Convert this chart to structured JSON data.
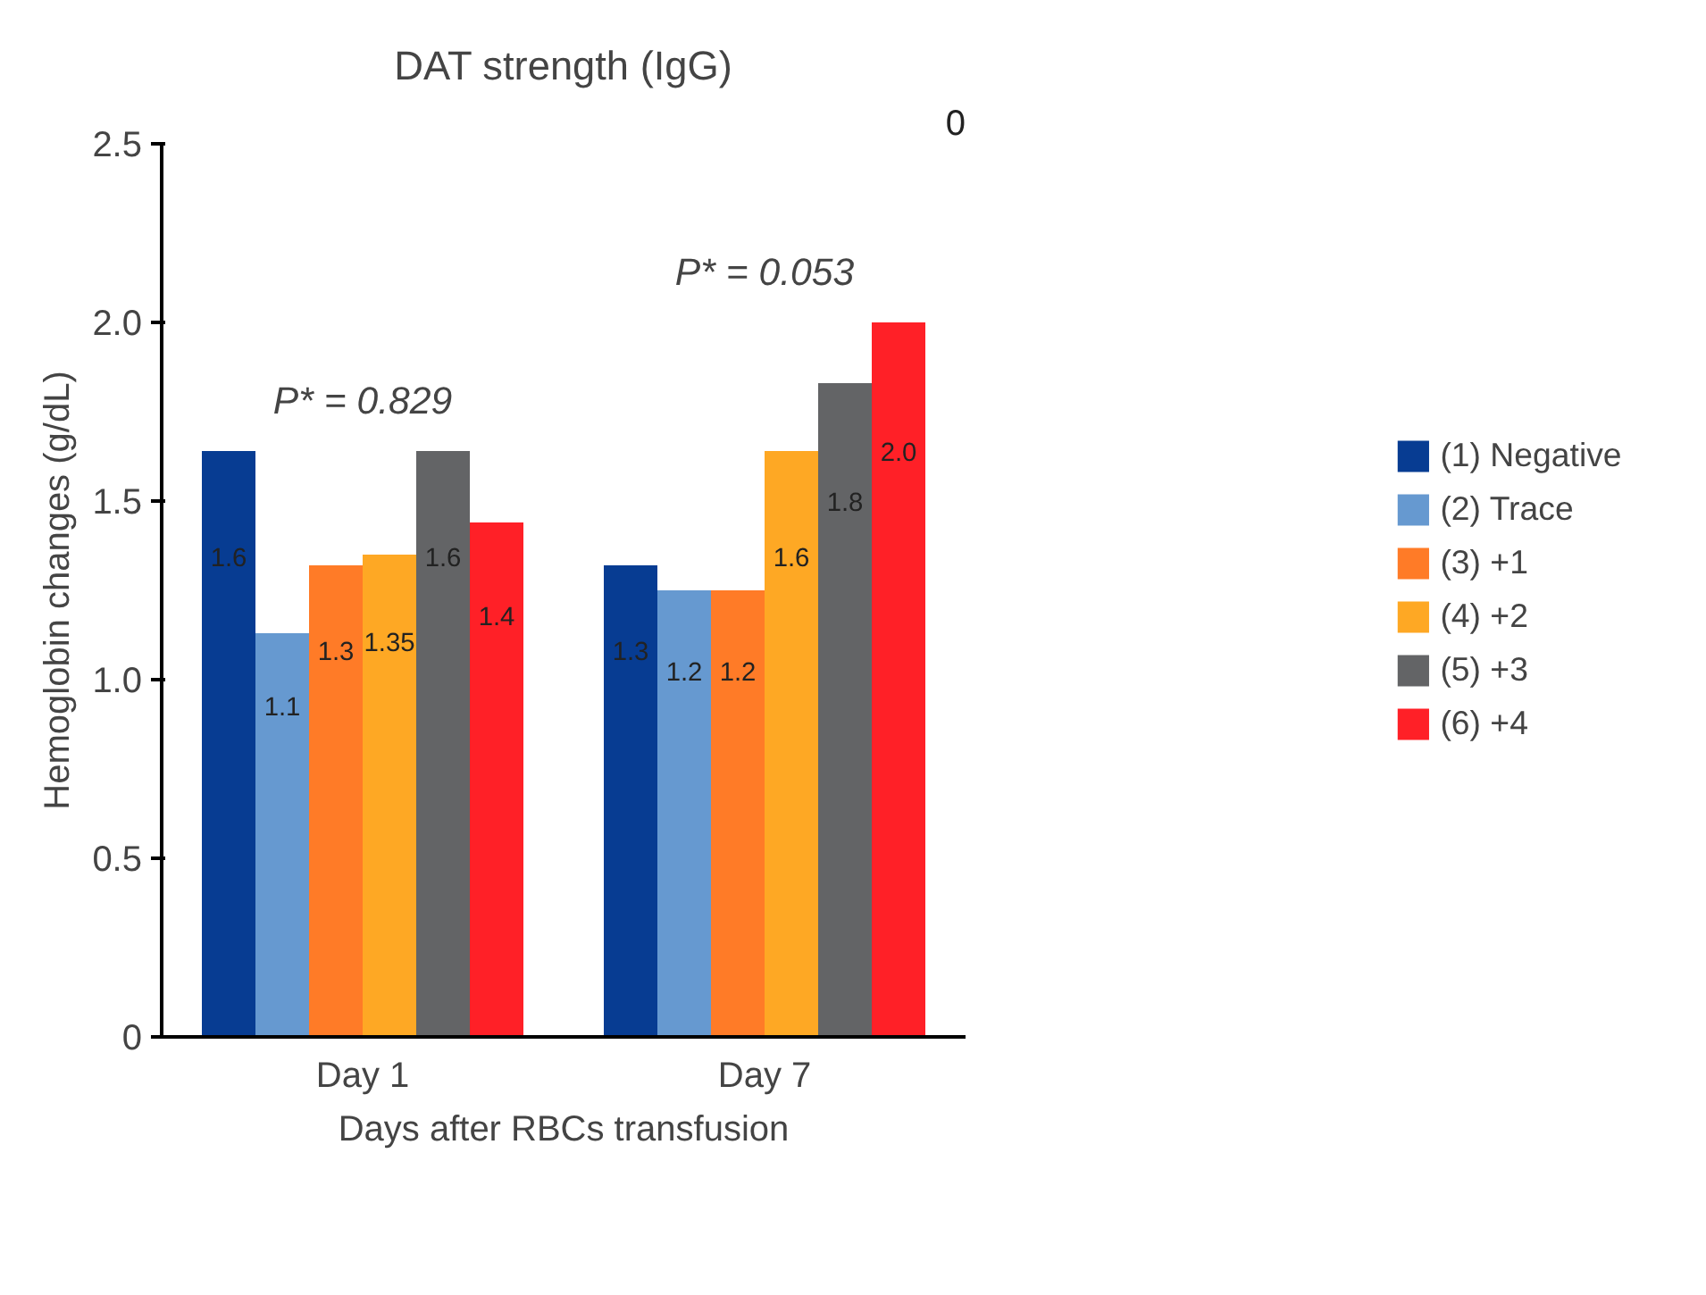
{
  "chart_data": {
    "type": "bar",
    "title": "DAT strength (IgG)",
    "xlabel": "Days after RBCs transfusion",
    "ylabel": "Hemoglobin changes (g/dL)",
    "categories": [
      "Day 1",
      "Day 7"
    ],
    "series": [
      {
        "name": "(1) Negative",
        "color": "#073c92",
        "values": [
          1.64,
          1.32
        ],
        "value_labels": [
          "1.6",
          "1.3"
        ]
      },
      {
        "name": "(2) Trace",
        "color": "#6699d0",
        "values": [
          1.13,
          1.25
        ],
        "value_labels": [
          "1.1",
          "1.2"
        ]
      },
      {
        "name": "(3) +1",
        "color": "#ff7b27",
        "values": [
          1.32,
          1.25
        ],
        "value_labels": [
          "1.3",
          "1.2"
        ]
      },
      {
        "name": "(4) +2",
        "color": "#fea824",
        "values": [
          1.35,
          1.64
        ],
        "value_labels": [
          "1.35",
          "1.6"
        ]
      },
      {
        "name": "(5) +3",
        "color": "#636466",
        "values": [
          1.64,
          1.83
        ],
        "value_labels": [
          "1.6",
          "1.8"
        ]
      },
      {
        "name": "(6) +4",
        "color": "#ff2027",
        "values": [
          1.44,
          2.0
        ],
        "value_labels": [
          "1.4",
          "2.0"
        ]
      }
    ],
    "ylim": [
      0,
      2.5
    ],
    "yticks": [
      {
        "value": 0,
        "label": "0"
      },
      0.5,
      {
        "value": 1.0,
        "label": "1.0"
      },
      1.5,
      {
        "value": 2.0,
        "label": "2.0"
      },
      2.5
    ],
    "grid": false,
    "legend": "right",
    "annotations": [
      "P* = 0.829",
      "P* = 0.053",
      "0"
    ]
  }
}
